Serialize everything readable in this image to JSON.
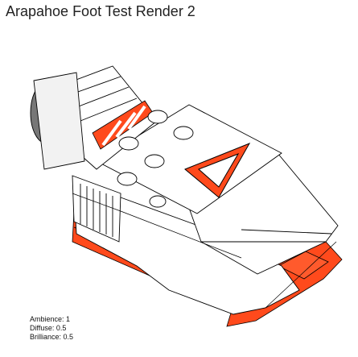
{
  "title": "Arapahoe Foot Test Render 2",
  "render_params": [
    {
      "label": "Ambience",
      "value": "1"
    },
    {
      "label": "Diffuse",
      "value": "0.5"
    },
    {
      "label": "Brilliance",
      "value": "0.5"
    }
  ],
  "colors": {
    "brick_red": "#ff4a1c",
    "brick_white": "#ffffff",
    "outline": "#000000",
    "text": "#222222"
  }
}
